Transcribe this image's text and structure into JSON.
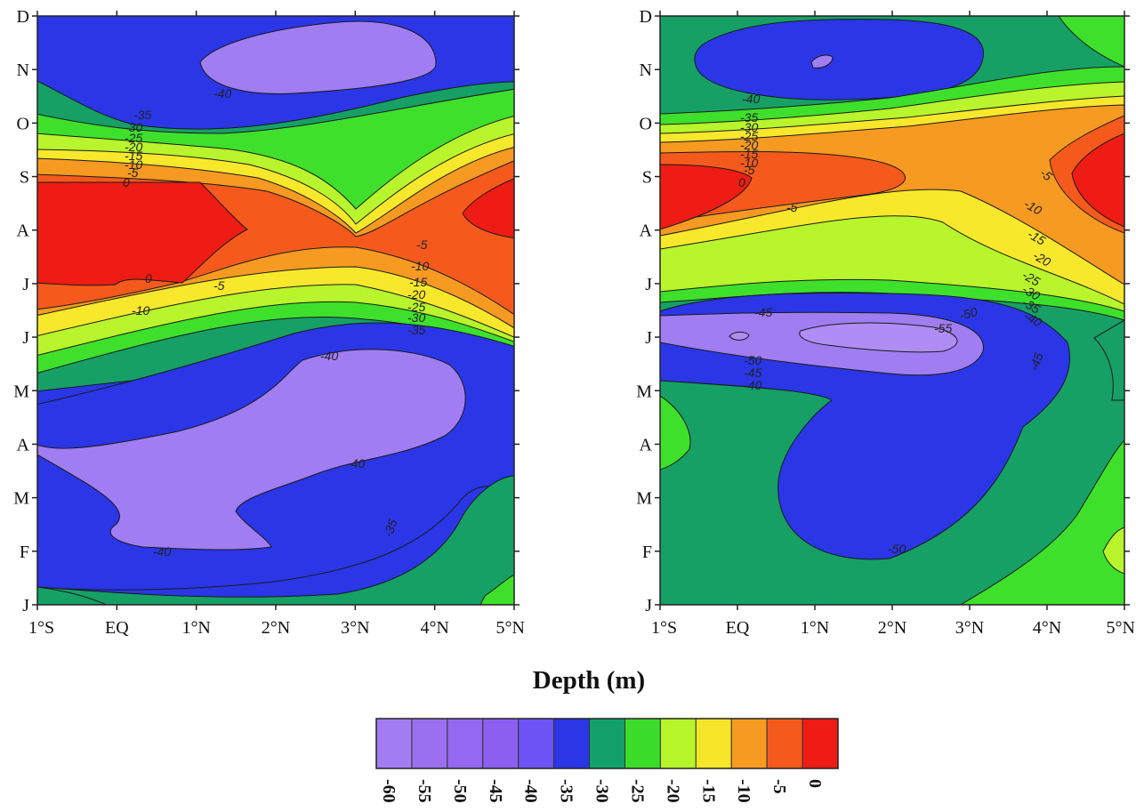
{
  "chart_data": [
    {
      "type": "heatmap",
      "subtype": "filled-contour",
      "x_tick_labels": [
        "1°S",
        "EQ",
        "1°N",
        "2°N",
        "3°N",
        "4°N",
        "5°N"
      ],
      "y_tick_labels": [
        "J",
        "F",
        "M",
        "A",
        "M",
        "J",
        "J",
        "A",
        "S",
        "O",
        "N",
        "D"
      ],
      "contour_labels": [
        {
          "text": "-40"
        },
        {
          "text": "-35"
        },
        {
          "text": "-30"
        },
        {
          "text": "-25"
        },
        {
          "text": "-20"
        },
        {
          "text": "-15"
        },
        {
          "text": "-10"
        },
        {
          "text": "-5"
        },
        {
          "text": "0"
        },
        {
          "text": "0"
        },
        {
          "text": "-5"
        },
        {
          "text": "-10"
        },
        {
          "text": "-5"
        },
        {
          "text": "-10"
        },
        {
          "text": "-15"
        },
        {
          "text": "-20"
        },
        {
          "text": "-25"
        },
        {
          "text": "-30"
        },
        {
          "text": "-35"
        },
        {
          "text": "-40"
        },
        {
          "text": "-40"
        },
        {
          "text": "-35"
        },
        {
          "text": "-40"
        }
      ]
    },
    {
      "type": "heatmap",
      "subtype": "filled-contour",
      "x_tick_labels": [
        "1°S",
        "EQ",
        "1°N",
        "2°N",
        "3°N",
        "4°N",
        "5°N"
      ],
      "y_tick_labels": [
        "J",
        "F",
        "M",
        "A",
        "M",
        "J",
        "J",
        "A",
        "S",
        "O",
        "N",
        "D"
      ],
      "contour_labels": [
        {
          "text": "-40"
        },
        {
          "text": "-35"
        },
        {
          "text": "-30"
        },
        {
          "text": "-25"
        },
        {
          "text": "-20"
        },
        {
          "text": "-15"
        },
        {
          "text": "-10"
        },
        {
          "text": "-5"
        },
        {
          "text": "0"
        },
        {
          "text": "-5"
        },
        {
          "text": "-5"
        },
        {
          "text": "-10"
        },
        {
          "text": "-15"
        },
        {
          "text": "-20"
        },
        {
          "text": "-25"
        },
        {
          "text": "-30"
        },
        {
          "text": "-35"
        },
        {
          "text": "-40"
        },
        {
          "text": "-45"
        },
        {
          "text": "-50"
        },
        {
          "text": "-55"
        },
        {
          "text": "-50"
        },
        {
          "text": "-45"
        },
        {
          "text": "-40"
        },
        {
          "text": "-45"
        },
        {
          "text": "-50"
        }
      ]
    }
  ],
  "colorbar": {
    "title": "Depth (m)",
    "labels": [
      "-60",
      "-55",
      "-50",
      "-45",
      "-40",
      "-35",
      "-30",
      "-25",
      "-20",
      "-15",
      "-10",
      "-5",
      "0"
    ],
    "colors": [
      "#a27cf2",
      "#9a70f0",
      "#9468f0",
      "#8c5ff0",
      "#6d52f5",
      "#2b36e6",
      "#14a06b",
      "#3cdc2a",
      "#b6f52a",
      "#f7e52a",
      "#f79a22",
      "#f55a1c",
      "#ee1c14"
    ]
  },
  "palette": {
    "violet": "#a07df3",
    "blue": "#3245e8",
    "deep_blue": "#1a2fd4",
    "dark_green": "#16a065",
    "green": "#3ee02c",
    "lime": "#b8f52c",
    "yellow": "#f7e82c",
    "orange": "#f79a22",
    "red_orange": "#f55a1c",
    "red": "#ee1c14"
  }
}
